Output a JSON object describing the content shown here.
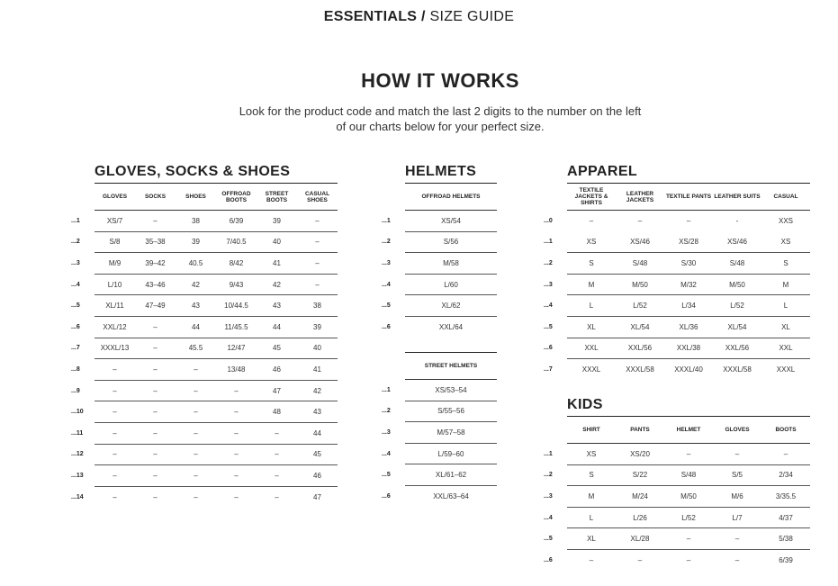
{
  "header": {
    "brand": "ESSENTIALS /",
    "title": "SIZE GUIDE"
  },
  "intro": {
    "heading": "HOW IT WORKS",
    "line1": "Look for the product code and match the last 2 digits to the number on the left",
    "line2": "of our charts below for your perfect size."
  },
  "tables": [
    {
      "id": "gloves",
      "title": "GLOVES, SOCKS & SHOES",
      "headers": [
        "GLOVES",
        "SOCKS",
        "SHOES",
        "OFFROAD BOOTS",
        "STREET BOOTS",
        "CASUAL SHOES"
      ],
      "rows": [
        {
          "code": "...1",
          "cells": [
            "XS/7",
            "–",
            "38",
            "6/39",
            "39",
            "–"
          ]
        },
        {
          "code": "...2",
          "cells": [
            "S/8",
            "35–38",
            "39",
            "7/40.5",
            "40",
            "–"
          ]
        },
        {
          "code": "...3",
          "cells": [
            "M/9",
            "39–42",
            "40.5",
            "8/42",
            "41",
            "–"
          ]
        },
        {
          "code": "...4",
          "cells": [
            "L/10",
            "43–46",
            "42",
            "9/43",
            "42",
            "–"
          ]
        },
        {
          "code": "...5",
          "cells": [
            "XL/11",
            "47–49",
            "43",
            "10/44.5",
            "43",
            "38"
          ]
        },
        {
          "code": "...6",
          "cells": [
            "XXL/12",
            "–",
            "44",
            "11/45.5",
            "44",
            "39"
          ]
        },
        {
          "code": "...7",
          "cells": [
            "XXXL/13",
            "–",
            "45.5",
            "12/47",
            "45",
            "40"
          ]
        },
        {
          "code": "...8",
          "cells": [
            "–",
            "–",
            "–",
            "13/48",
            "46",
            "41"
          ]
        },
        {
          "code": "...9",
          "cells": [
            "–",
            "–",
            "–",
            "–",
            "47",
            "42"
          ]
        },
        {
          "code": "...10",
          "cells": [
            "–",
            "–",
            "–",
            "–",
            "48",
            "43"
          ]
        },
        {
          "code": "...11",
          "cells": [
            "–",
            "–",
            "–",
            "–",
            "–",
            "44"
          ]
        },
        {
          "code": "...12",
          "cells": [
            "–",
            "–",
            "–",
            "–",
            "–",
            "45"
          ]
        },
        {
          "code": "...13",
          "cells": [
            "–",
            "–",
            "–",
            "–",
            "–",
            "46"
          ]
        },
        {
          "code": "...14",
          "cells": [
            "–",
            "–",
            "–",
            "–",
            "–",
            "47"
          ]
        }
      ]
    },
    {
      "id": "offroad-helmets",
      "title": "HELMETS",
      "headers": [
        "OFFROAD HELMETS"
      ],
      "rows": [
        {
          "code": "...1",
          "cells": [
            "XS/54"
          ]
        },
        {
          "code": "...2",
          "cells": [
            "S/56"
          ]
        },
        {
          "code": "...3",
          "cells": [
            "M/58"
          ]
        },
        {
          "code": "...4",
          "cells": [
            "L/60"
          ]
        },
        {
          "code": "...5",
          "cells": [
            "XL/62"
          ]
        },
        {
          "code": "...6",
          "cells": [
            "XXL/64"
          ]
        }
      ]
    },
    {
      "id": "street-helmets",
      "title": "",
      "headers": [
        "STREET HELMETS"
      ],
      "rows": [
        {
          "code": "...1",
          "cells": [
            "XS/53–54"
          ]
        },
        {
          "code": "...2",
          "cells": [
            "S/55–56"
          ]
        },
        {
          "code": "...3",
          "cells": [
            "M/57–58"
          ]
        },
        {
          "code": "...4",
          "cells": [
            "L/59–60"
          ]
        },
        {
          "code": "...5",
          "cells": [
            "XL/61–62"
          ]
        },
        {
          "code": "...6",
          "cells": [
            "XXL/63–64"
          ]
        }
      ]
    },
    {
      "id": "apparel",
      "title": "APPAREL",
      "headers": [
        "TEXTILE JACKETS & SHIRTS",
        "LEATHER JACKETS",
        "TEXTILE PANTS",
        "LEATHER SUITS",
        "CASUAL"
      ],
      "rows": [
        {
          "code": "...0",
          "cells": [
            "–",
            "–",
            "–",
            "-",
            "XXS"
          ]
        },
        {
          "code": "...1",
          "cells": [
            "XS",
            "XS/46",
            "XS/28",
            "XS/46",
            "XS"
          ]
        },
        {
          "code": "...2",
          "cells": [
            "S",
            "S/48",
            "S/30",
            "S/48",
            "S"
          ]
        },
        {
          "code": "...3",
          "cells": [
            "M",
            "M/50",
            "M/32",
            "M/50",
            "M"
          ]
        },
        {
          "code": "...4",
          "cells": [
            "L",
            "L/52",
            "L/34",
            "L/52",
            "L"
          ]
        },
        {
          "code": "...5",
          "cells": [
            "XL",
            "XL/54",
            "XL/36",
            "XL/54",
            "XL"
          ]
        },
        {
          "code": "...6",
          "cells": [
            "XXL",
            "XXL/56",
            "XXL/38",
            "XXL/56",
            "XXL"
          ]
        },
        {
          "code": "...7",
          "cells": [
            "XXXL",
            "XXXL/58",
            "XXXL/40",
            "XXXL/58",
            "XXXL"
          ]
        }
      ]
    },
    {
      "id": "kids",
      "title": "KIDS",
      "headers": [
        "SHIRT",
        "PANTS",
        "HELMET",
        "GLOVES",
        "BOOTS"
      ],
      "rows": [
        {
          "code": "...1",
          "cells": [
            "XS",
            "XS/20",
            "–",
            "–",
            "–"
          ]
        },
        {
          "code": "...2",
          "cells": [
            "S",
            "S/22",
            "S/48",
            "S/5",
            "2/34"
          ]
        },
        {
          "code": "...3",
          "cells": [
            "M",
            "M/24",
            "M/50",
            "M/6",
            "3/35.5"
          ]
        },
        {
          "code": "...4",
          "cells": [
            "L",
            "L/26",
            "L/52",
            "L/7",
            "4/37"
          ]
        },
        {
          "code": "...5",
          "cells": [
            "XL",
            "XL/28",
            "–",
            "–",
            "5/38"
          ]
        },
        {
          "code": "...6",
          "cells": [
            "–",
            "–",
            "–",
            "–",
            "6/39"
          ]
        }
      ]
    }
  ]
}
